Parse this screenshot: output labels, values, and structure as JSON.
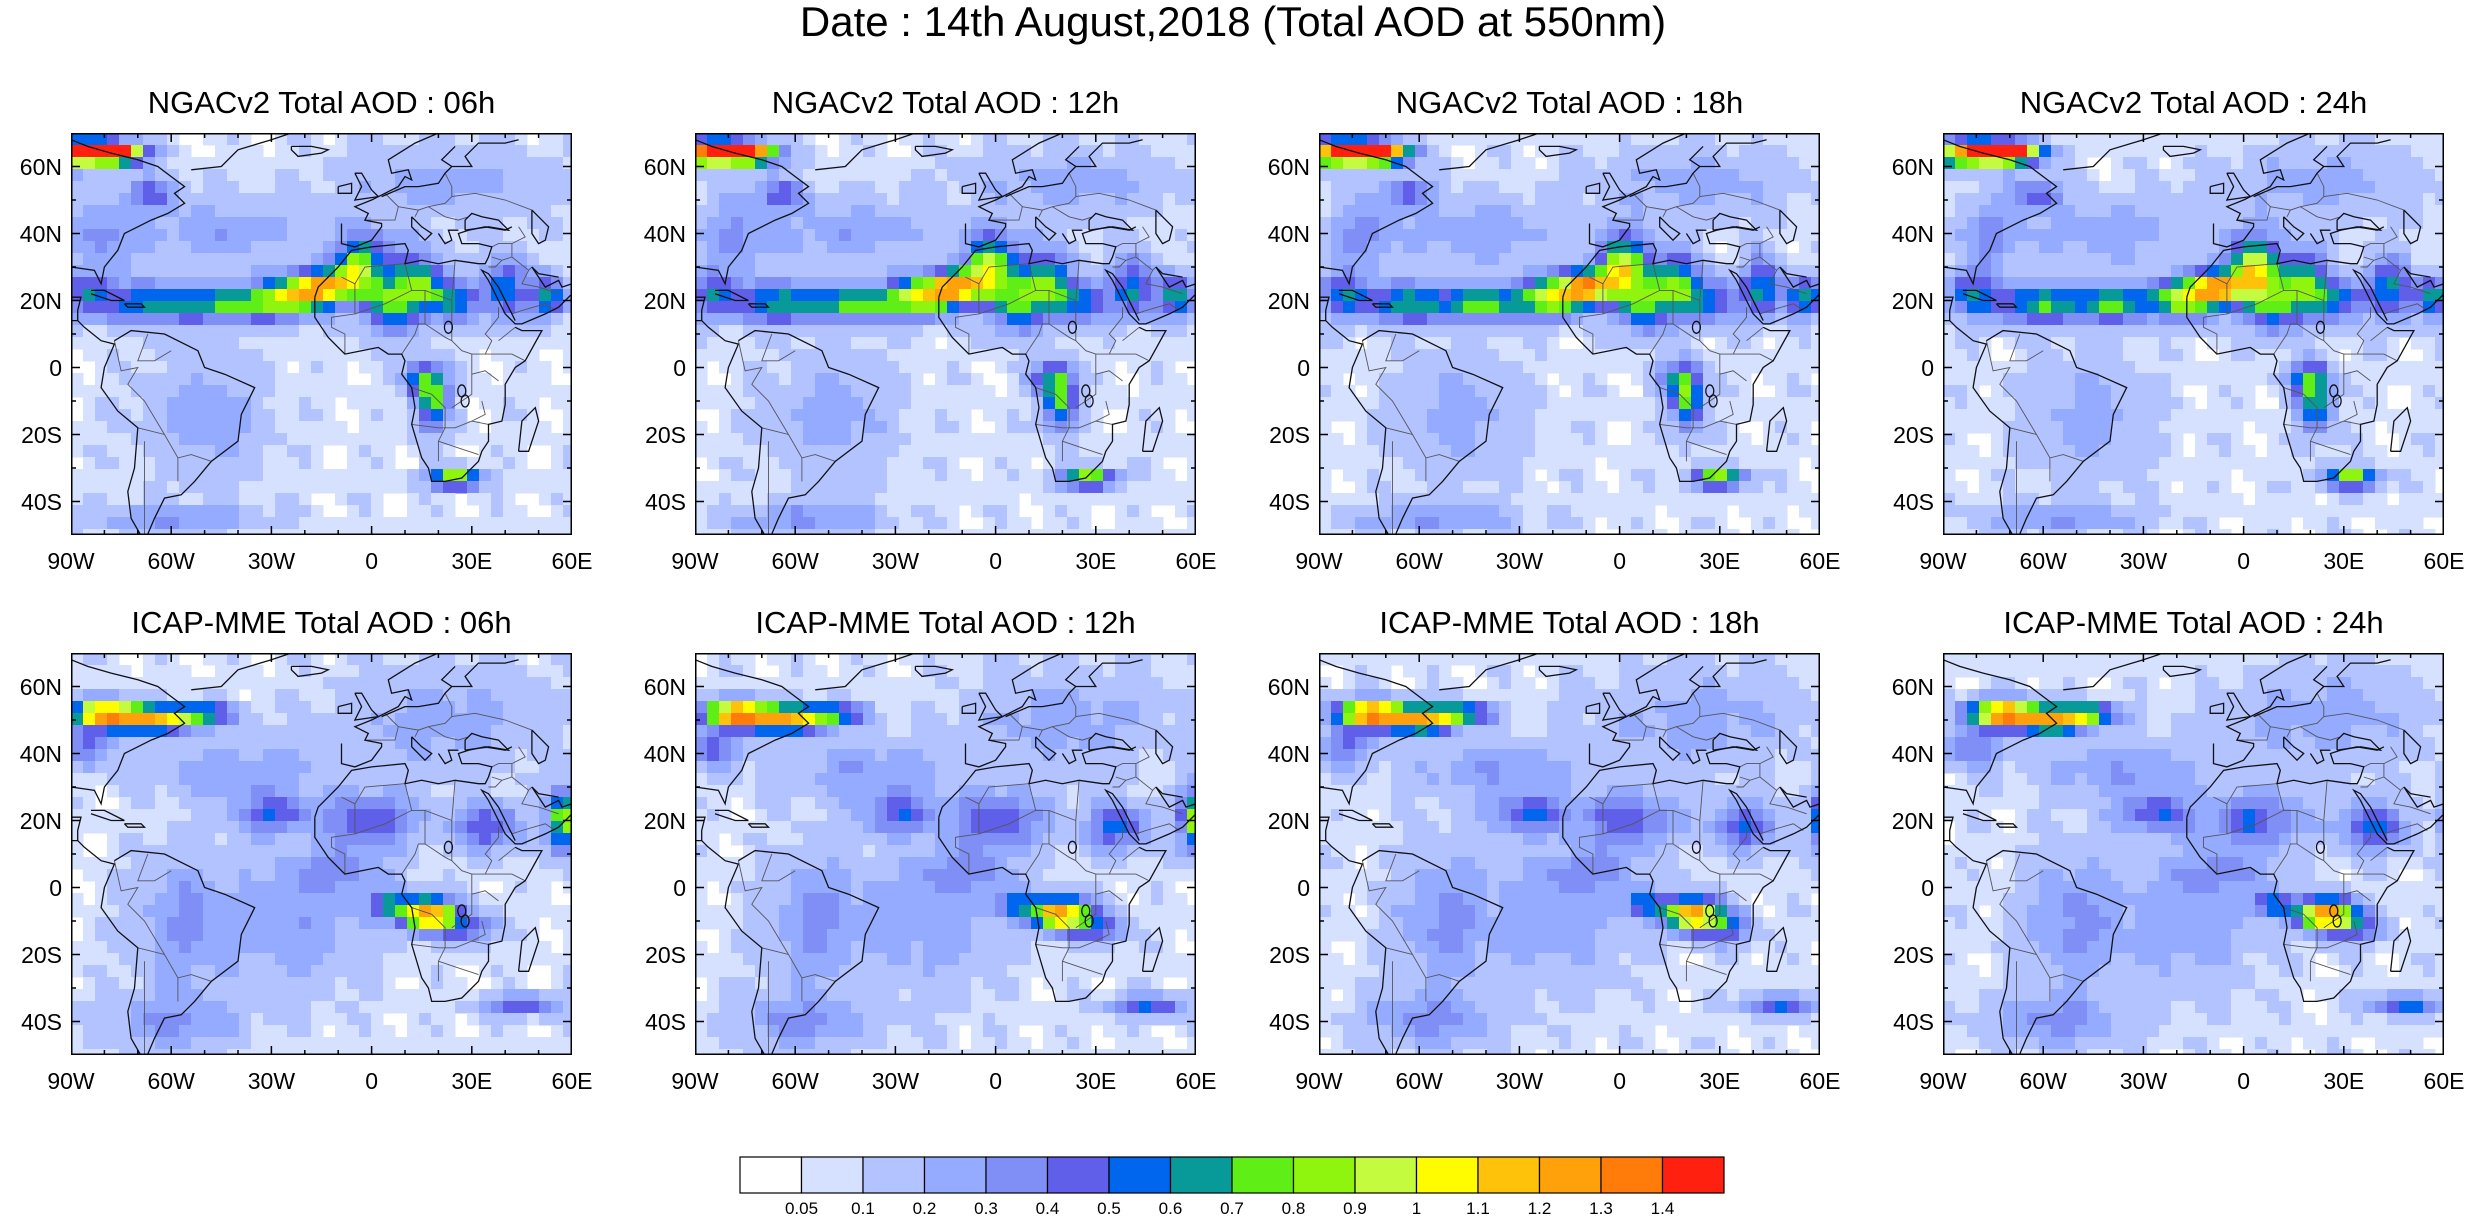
{
  "title": "Date : 14th August,2018 (Total AOD at 550nm)",
  "panels": [
    {
      "title": "NGACv2 Total AOD : 06h"
    },
    {
      "title": "NGACv2 Total AOD : 12h"
    },
    {
      "title": "NGACv2 Total AOD : 18h"
    },
    {
      "title": "NGACv2 Total AOD : 24h"
    },
    {
      "title": "ICAP-MME Total AOD : 06h"
    },
    {
      "title": "ICAP-MME Total AOD : 12h"
    },
    {
      "title": "ICAP-MME Total AOD : 18h"
    },
    {
      "title": "ICAP-MME Total AOD : 24h"
    }
  ],
  "axes": {
    "lat_labels": [
      "60N",
      "40N",
      "20N",
      "0",
      "20S",
      "40S"
    ],
    "lat_values": [
      60,
      40,
      20,
      0,
      -20,
      -40
    ],
    "lon_labels": [
      "90W",
      "60W",
      "30W",
      "0",
      "30E",
      "60E"
    ],
    "lon_values": [
      -90,
      -60,
      -30,
      0,
      30,
      60
    ],
    "lat_range": [
      -50,
      70
    ],
    "lon_range": [
      -90,
      60
    ]
  },
  "colorbar": {
    "colors": [
      "#ffffff",
      "#d6e0ff",
      "#b3c3ff",
      "#94abff",
      "#7f8ff5",
      "#5f5fe9",
      "#0066ee",
      "#079a98",
      "#5fef17",
      "#8ff50f",
      "#c5fb3f",
      "#fffc00",
      "#ffc20a",
      "#ffa10a",
      "#ff7b0a",
      "#ff2010"
    ],
    "labels": [
      "0.05",
      "0.1",
      "0.2",
      "0.3",
      "0.4",
      "0.5",
      "0.6",
      "0.7",
      "0.8",
      "0.9",
      "1",
      "1.1",
      "1.2",
      "1.3",
      "1.4"
    ]
  }
}
